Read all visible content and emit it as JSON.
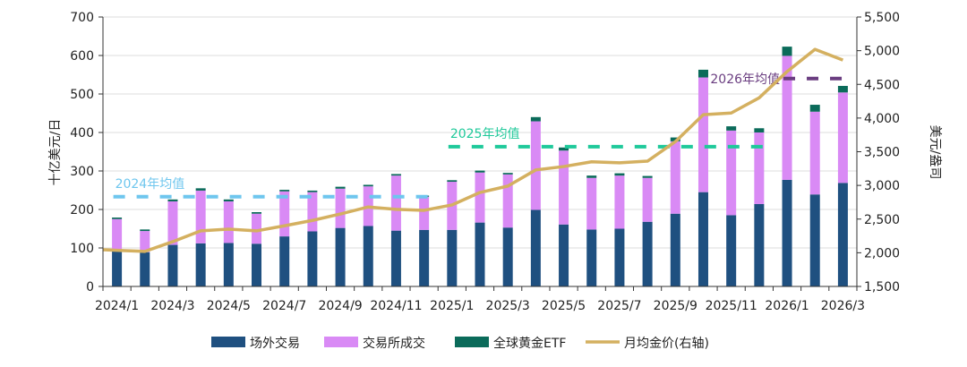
{
  "chart_data": {
    "type": "bar",
    "stacked": true,
    "categories": [
      "2024/1",
      "2024/2",
      "2024/3",
      "2024/4",
      "2024/5",
      "2024/6",
      "2024/7",
      "2024/8",
      "2024/9",
      "2024/10",
      "2024/11",
      "2024/12",
      "2025/1",
      "2025/2",
      "2025/3",
      "2025/4",
      "2025/5",
      "2025/6",
      "2025/7",
      "2025/8",
      "2025/9",
      "2025/10",
      "2025/11",
      "2025/12",
      "2026/1",
      "2026/2",
      "2026/3"
    ],
    "tick_labels": [
      "2024/1",
      "2024/3",
      "2024/5",
      "2024/7",
      "2024/9",
      "2024/11",
      "2025/1",
      "2025/3",
      "2025/5",
      "2025/7",
      "2025/9",
      "2025/11",
      "2026/1",
      "2026/3"
    ],
    "ylabel": "十亿美元/日",
    "ylabel_right": "美元/盎司",
    "ylim": [
      0,
      700
    ],
    "yticks": [
      0,
      100,
      200,
      300,
      400,
      500,
      600,
      700
    ],
    "ylim_right": [
      1500,
      5500
    ],
    "yticks_right": [
      "1,500",
      "2,000",
      "2,500",
      "3,000",
      "3,500",
      "4,000",
      "4,500",
      "5,000",
      "5,500"
    ],
    "grid": true,
    "legend_position": "bottom",
    "series": [
      {
        "name": "场外交易",
        "color": "#1f5080",
        "axis": "left",
        "kind": "bar",
        "values": [
          93,
          89,
          108,
          112,
          113,
          111,
          130,
          143,
          152,
          157,
          145,
          147,
          147,
          166,
          153,
          199,
          161,
          148,
          150,
          168,
          189,
          245,
          185,
          214,
          277,
          239,
          269
        ]
      },
      {
        "name": "交易所成交",
        "color": "#d98af5",
        "axis": "left",
        "kind": "bar",
        "values": [
          82,
          55,
          113,
          137,
          108,
          78,
          117,
          102,
          102,
          103,
          143,
          86,
          125,
          130,
          138,
          230,
          192,
          134,
          138,
          114,
          188,
          298,
          220,
          186,
          322,
          215,
          235
        ]
      },
      {
        "name": "全球黄金ETF",
        "color": "#0b6b5a",
        "axis": "left",
        "kind": "bar",
        "values": [
          4,
          4,
          5,
          6,
          5,
          4,
          4,
          4,
          5,
          4,
          4,
          3,
          4,
          5,
          4,
          11,
          8,
          6,
          6,
          5,
          10,
          20,
          11,
          11,
          24,
          18,
          17
        ]
      },
      {
        "name": "月均金价(右轴)",
        "color": "#d4b060",
        "axis": "right",
        "kind": "line",
        "values": [
          2045,
          2020,
          2165,
          2325,
          2350,
          2325,
          2400,
          2480,
          2575,
          2680,
          2645,
          2630,
          2710,
          2895,
          2990,
          3230,
          3280,
          3350,
          3335,
          3360,
          3650,
          4050,
          4075,
          4300,
          4690,
          5020,
          4860
        ]
      }
    ],
    "annotations": [
      {
        "text": "2024年均值",
        "value": 233,
        "from": "2024/1",
        "to": "2024/12",
        "color": "#6ec6ee"
      },
      {
        "text": "2025年均值",
        "value": 363,
        "from": "2025/1",
        "to": "2025/12",
        "color": "#1fc99a"
      },
      {
        "text": "2026年均值",
        "value": 540,
        "from": "2026/1",
        "to": "2026/3",
        "color": "#6a3d80"
      }
    ]
  }
}
